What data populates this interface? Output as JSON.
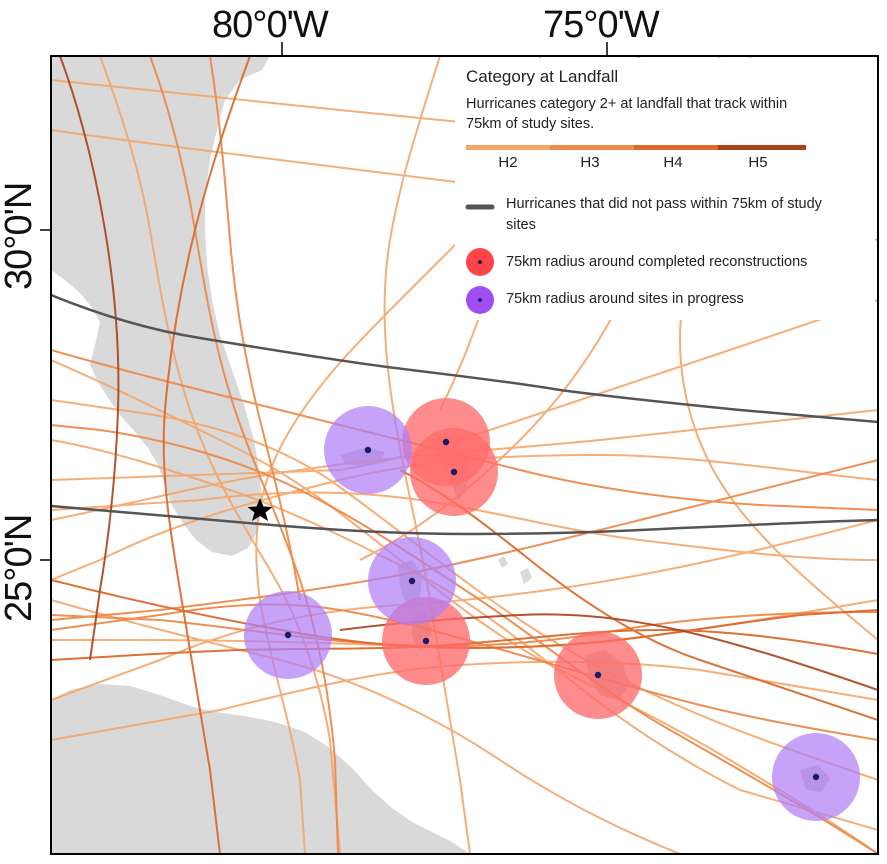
{
  "axes": {
    "x_ticks": [
      "80°0'W",
      "75°0'W"
    ],
    "y_ticks": [
      "30°0'N",
      "25°0'N"
    ]
  },
  "legend": {
    "title": "Category at Landfall",
    "subtitle": "Hurricanes category 2+ at landfall that track within 75km of study sites.",
    "categories": [
      {
        "label": "H2",
        "color": "#f4a66a"
      },
      {
        "label": "H3",
        "color": "#ee8a4a"
      },
      {
        "label": "H4",
        "color": "#dc6a2c"
      },
      {
        "label": "H5",
        "color": "#a94318"
      }
    ],
    "gray_track_label": "Hurricanes that did not pass within 75km of study sites",
    "completed_label": "75km radius around completed reconstructions",
    "progress_label": "75km radius around sites in progress"
  },
  "colors": {
    "land": "#d9d9d9",
    "gray_track": "#555555",
    "completed": "#ff6b6b",
    "in_progress": "#b07ef5",
    "site_dot": "#1a1a66"
  }
}
